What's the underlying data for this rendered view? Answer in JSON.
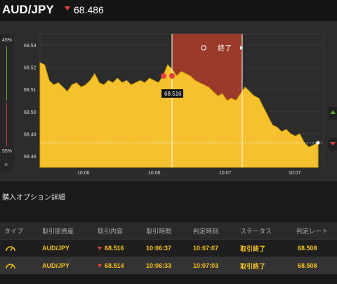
{
  "header": {
    "pair": "AUD/JPY",
    "rate": "68.486"
  },
  "chart": {
    "pct_top": "45%",
    "pct_bottom": "55%",
    "close_label": "×",
    "end_label": "終了",
    "bubble_label": "68.516",
    "colors": {
      "area": "#f6c12f",
      "expired_band": "#9a3a2a",
      "line": "#d9a800"
    }
  },
  "chart_data": {
    "type": "area",
    "y_ticks": [
      "68.53",
      "68.52",
      "68.51",
      "68.50",
      "68.49",
      "68.48"
    ],
    "x_ticks": [
      "10:06",
      "10:06",
      "10:07",
      "10:07"
    ],
    "ylim": [
      68.475,
      68.535
    ],
    "current_rate": 68.486,
    "values": [
      68.522,
      68.521,
      68.514,
      68.512,
      68.513,
      68.511,
      68.509,
      68.512,
      68.513,
      68.511,
      68.512,
      68.514,
      68.517,
      68.513,
      68.512,
      68.514,
      68.513,
      68.515,
      68.513,
      68.514,
      68.512,
      68.513,
      68.514,
      68.513,
      68.515,
      68.514,
      68.513,
      68.516,
      68.521,
      68.519,
      68.516,
      68.518,
      68.517,
      68.516,
      68.514,
      68.513,
      68.512,
      68.511,
      68.509,
      68.507,
      68.508,
      68.505,
      68.506,
      68.505,
      68.508,
      68.511,
      68.509,
      68.507,
      68.506,
      68.502,
      68.498,
      68.494,
      68.493,
      68.491,
      68.492,
      68.49,
      68.489,
      68.49,
      68.486,
      68.484,
      68.485,
      68.486
    ]
  },
  "purchase": {
    "title": "購入オプション詳細",
    "headers": [
      "タイプ",
      "取引原資産",
      "取引内容",
      "取引時間",
      "判定時刻",
      "ステータス",
      "判定レート"
    ],
    "rows": [
      {
        "asset": "AUD/JPY",
        "rate": "68.516",
        "trade_time": "10:06:37",
        "judge_time": "10:07:07",
        "status": "取引終了",
        "judge_rate": "68.508"
      },
      {
        "asset": "AUD/JPY",
        "rate": "68.514",
        "trade_time": "10:06:33",
        "judge_time": "10:07:03",
        "status": "取引終了",
        "judge_rate": "68.508"
      }
    ]
  }
}
